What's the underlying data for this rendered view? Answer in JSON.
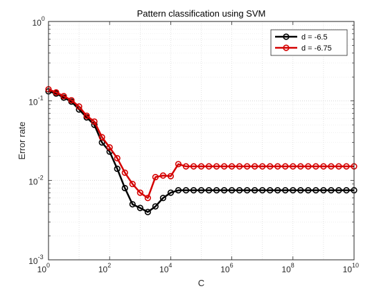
{
  "chart_data": {
    "type": "line",
    "title": "Pattern classification using SVM",
    "xlabel": "C",
    "ylabel": "Error rate",
    "xscale": "log",
    "yscale": "log",
    "xlim": [
      1,
      10000000000
    ],
    "ylim": [
      0.001,
      1
    ],
    "grid": true,
    "legend_position": "top-right",
    "x_ticks": [
      {
        "value": 1,
        "base": "10",
        "exp": "0"
      },
      {
        "value": 100,
        "base": "10",
        "exp": "2"
      },
      {
        "value": 10000,
        "base": "10",
        "exp": "4"
      },
      {
        "value": 1000000,
        "base": "10",
        "exp": "6"
      },
      {
        "value": 100000000,
        "base": "10",
        "exp": "8"
      },
      {
        "value": 10000000000,
        "base": "10",
        "exp": "10"
      }
    ],
    "y_ticks": [
      {
        "value": 0.001,
        "base": "10",
        "exp": "-3"
      },
      {
        "value": 0.01,
        "base": "10",
        "exp": "-2"
      },
      {
        "value": 0.1,
        "base": "10",
        "exp": "-1"
      },
      {
        "value": 1,
        "base": "10",
        "exp": "0"
      }
    ],
    "x": [
      1,
      1.778,
      3.162,
      5.623,
      10,
      17.78,
      31.62,
      56.23,
      100,
      177.8,
      316.2,
      562.3,
      1000,
      1778,
      3162,
      5623,
      10000,
      17780,
      31620,
      56230,
      100000,
      177800,
      316200,
      562300,
      1000000,
      1778000,
      3162000,
      5623000,
      10000000,
      17780000,
      31620000,
      56230000,
      100000000,
      177800000,
      316200000,
      562300000,
      1000000000,
      1778000000,
      3162000000,
      5623000000,
      10000000000
    ],
    "series": [
      {
        "name": "d = -6.5",
        "color": "#000000",
        "marker": "circle",
        "values": [
          0.132,
          0.124,
          0.11,
          0.098,
          0.078,
          0.062,
          0.05,
          0.03,
          0.023,
          0.014,
          0.008,
          0.005,
          0.0045,
          0.004,
          0.0047,
          0.006,
          0.007,
          0.0075,
          0.0075,
          0.0075,
          0.0075,
          0.0075,
          0.0075,
          0.0075,
          0.0075,
          0.0075,
          0.0075,
          0.0075,
          0.0075,
          0.0075,
          0.0075,
          0.0075,
          0.0075,
          0.0075,
          0.0075,
          0.0075,
          0.0075,
          0.0075,
          0.0075,
          0.0075,
          0.0075
        ]
      },
      {
        "name": "d = -6.75",
        "color": "#d40000",
        "marker": "circle",
        "values": [
          0.14,
          0.128,
          0.115,
          0.102,
          0.085,
          0.065,
          0.055,
          0.035,
          0.026,
          0.019,
          0.0125,
          0.009,
          0.007,
          0.006,
          0.011,
          0.0115,
          0.0113,
          0.016,
          0.015,
          0.015,
          0.015,
          0.015,
          0.015,
          0.015,
          0.015,
          0.015,
          0.015,
          0.015,
          0.015,
          0.015,
          0.015,
          0.015,
          0.015,
          0.015,
          0.015,
          0.015,
          0.015,
          0.015,
          0.015,
          0.015,
          0.015
        ]
      }
    ]
  }
}
